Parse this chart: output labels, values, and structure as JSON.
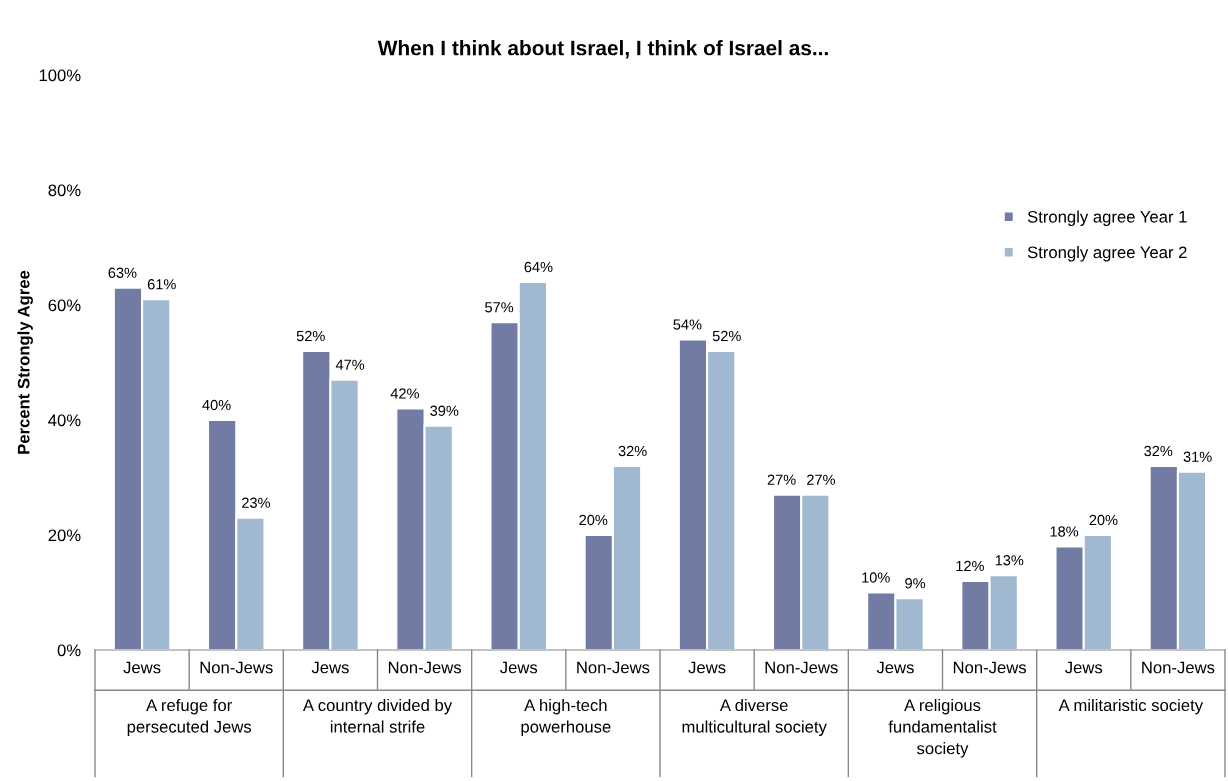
{
  "chart_data": {
    "type": "bar",
    "title": "When I think about Israel, I think of Israel as...",
    "ylabel": "Percent Strongly Agree",
    "categories": [
      "Jews",
      "Non-Jews",
      "Jews",
      "Non-Jews",
      "Jews",
      "Non-Jews",
      "Jews",
      "Non-Jews",
      "Jews",
      "Non-Jews",
      "Jews",
      "Non-Jews"
    ],
    "series": [
      {
        "name": "Strongly agree Year 1",
        "color": "#717ba3",
        "values": [
          63,
          40,
          52,
          42,
          57,
          20,
          54,
          27,
          10,
          12,
          18,
          32
        ],
        "value_labels": [
          "63%",
          "40%",
          "52%",
          "42%",
          "57%",
          "20%",
          "54%",
          "27%",
          "10%",
          "12%",
          "18%",
          "32%"
        ]
      },
      {
        "name": "Strongly agree Year 2",
        "color": "#a0b8d0",
        "values": [
          61,
          23,
          47,
          39,
          64,
          32,
          52,
          27,
          9,
          13,
          20,
          31
        ],
        "value_labels": [
          "61%",
          "23%",
          "47%",
          "39%",
          "64%",
          "32%",
          "52%",
          "27%",
          "9%",
          "13%",
          "20%",
          "31%"
        ]
      }
    ],
    "annotations": [
      "A refuge for\npersecuted Jews",
      "A country divided by\ninternal strife",
      "A high-tech\npowerhouse",
      "A diverse\nmulticultural society",
      "A religious\nfundamentalist\nsociety",
      "A militaristic society"
    ],
    "ylim": [
      0,
      100
    ],
    "yticks": [
      {
        "value": 0,
        "label": "0%"
      },
      {
        "value": 20,
        "label": "20%"
      },
      {
        "value": 40,
        "label": "40%"
      },
      {
        "value": 60,
        "label": "60%"
      },
      {
        "value": 80,
        "label": "80%"
      },
      {
        "value": 100,
        "label": "100%"
      }
    ],
    "legend": "right",
    "grid": false
  }
}
